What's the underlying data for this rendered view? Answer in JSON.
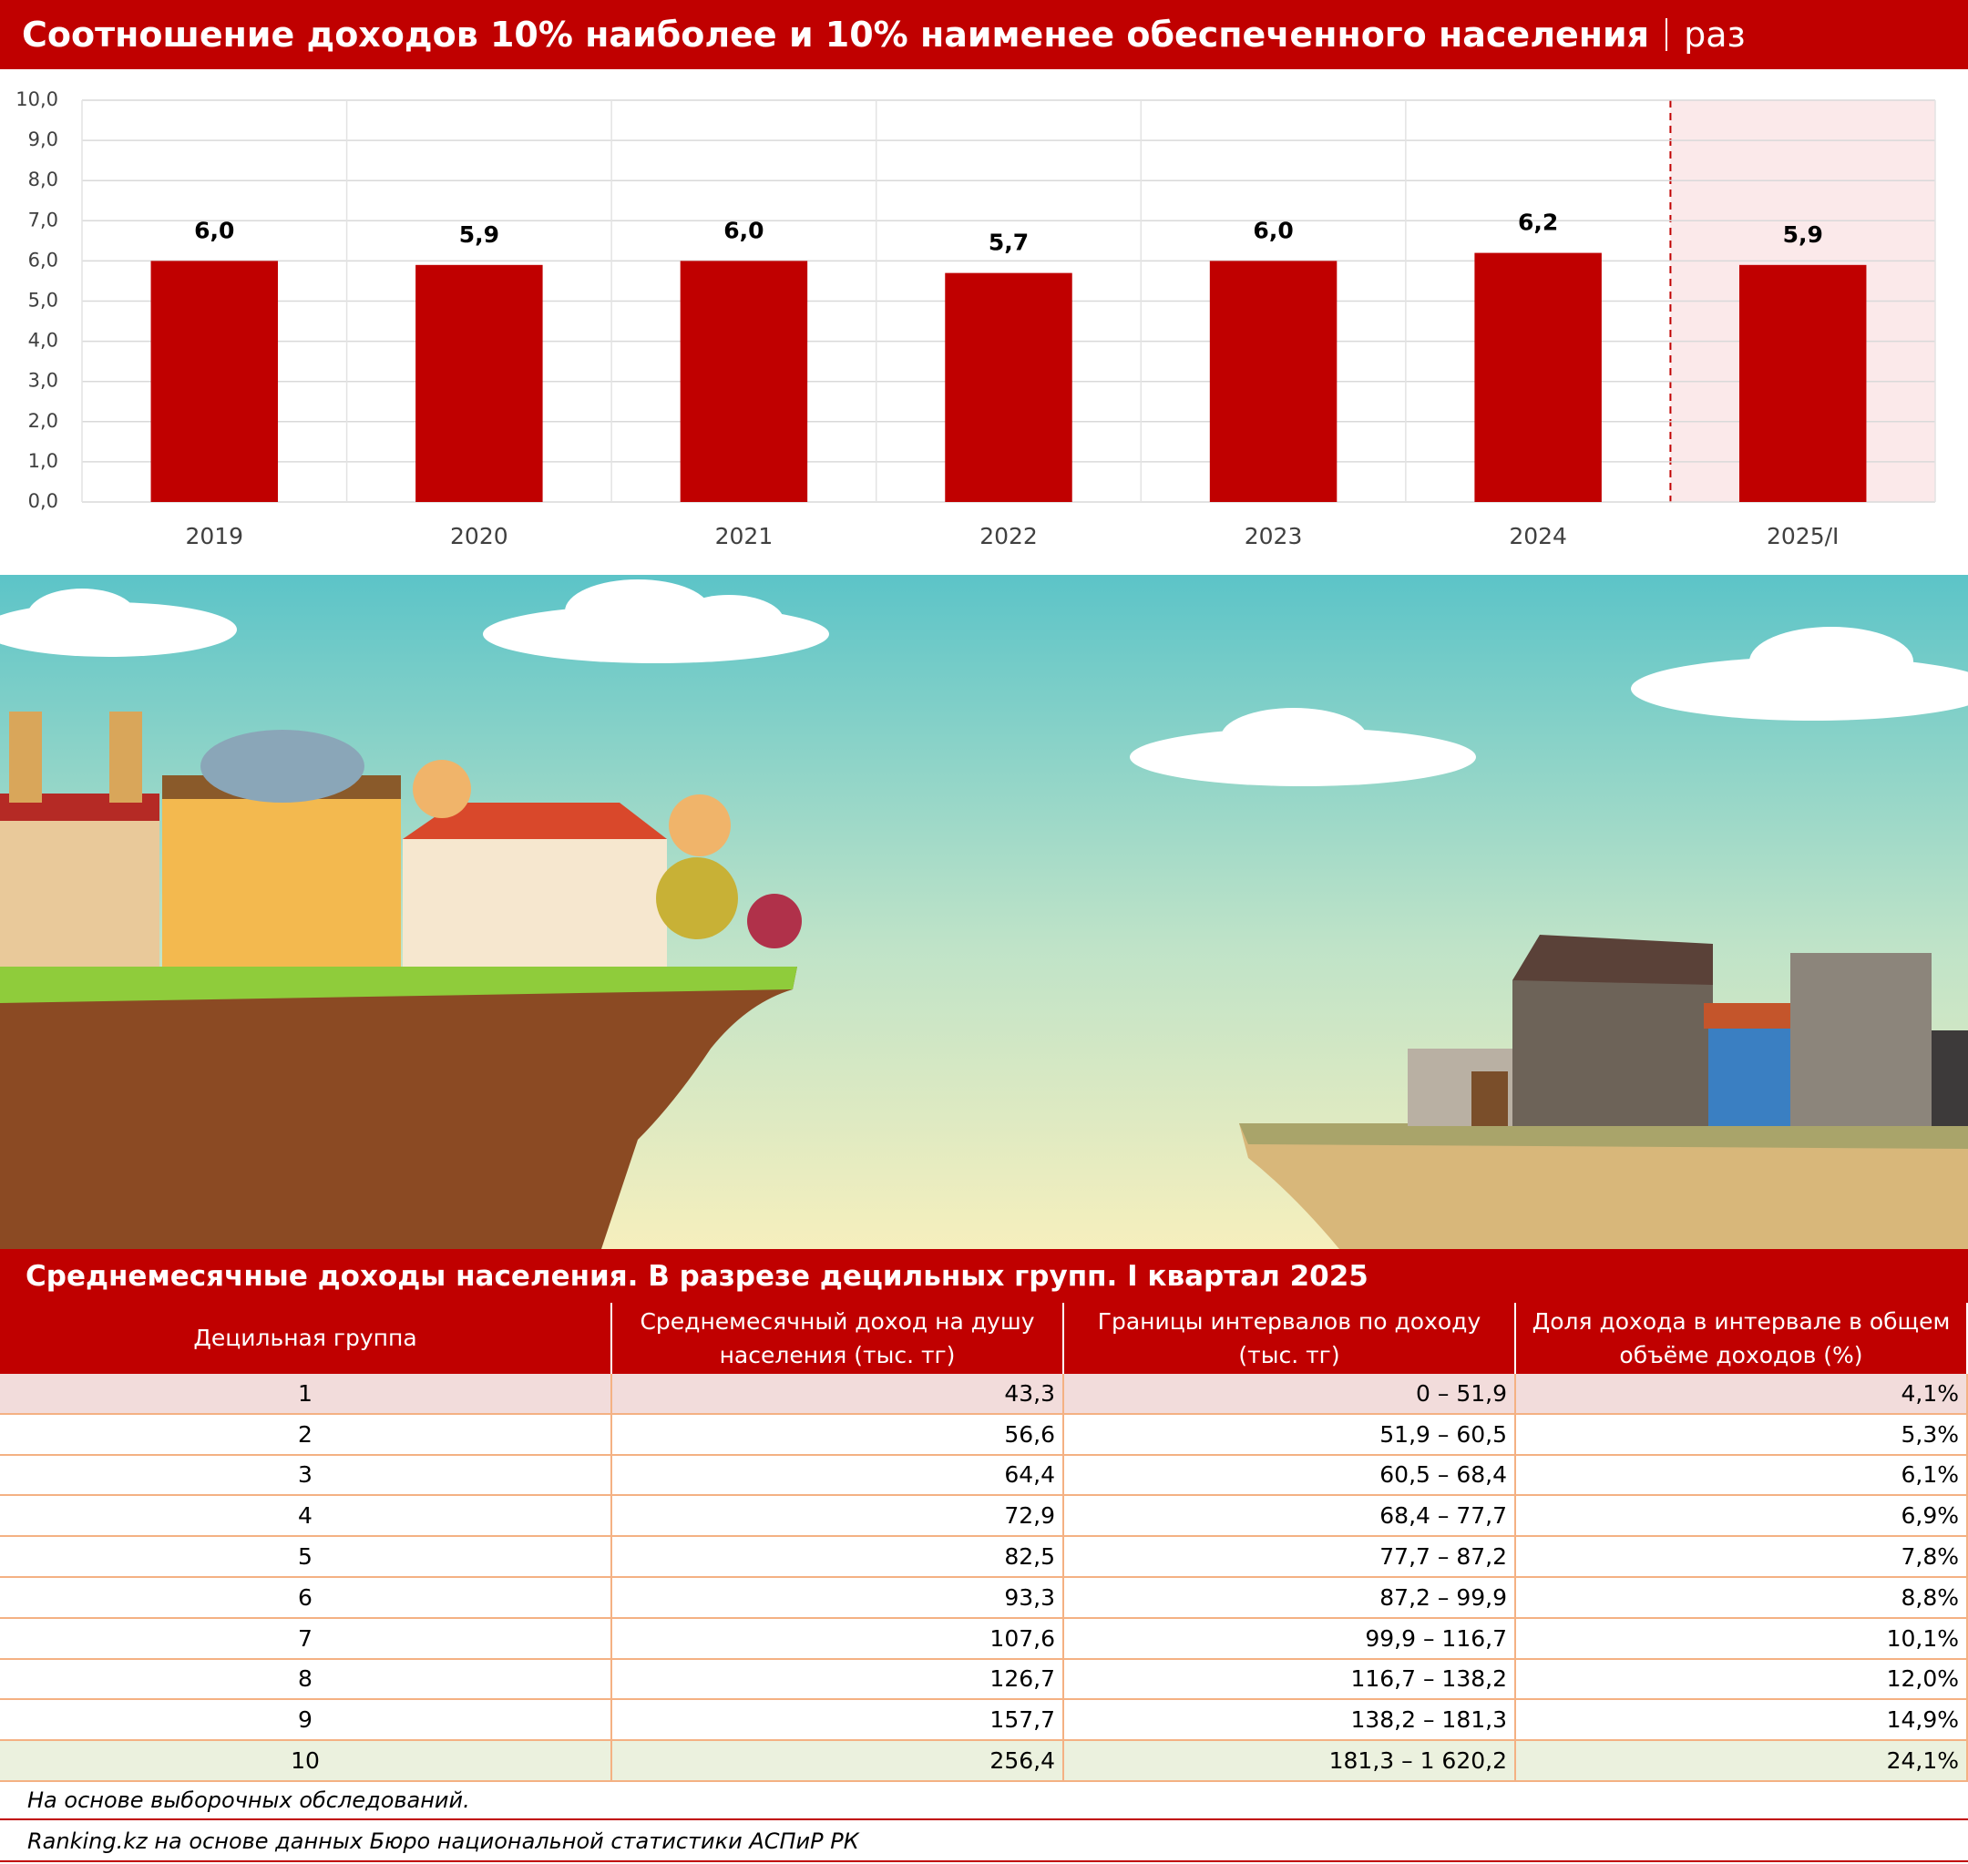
{
  "chart_data": {
    "type": "bar",
    "title": "Соотношение доходов 10% наиболее и 10% наименее обеспеченного населения",
    "unit": "раз",
    "categories": [
      "2019",
      "2020",
      "2021",
      "2022",
      "2023",
      "2024",
      "2025/I"
    ],
    "values": [
      6.0,
      5.9,
      6.0,
      5.7,
      6.0,
      6.2,
      5.9
    ],
    "value_labels": [
      "6,0",
      "5,9",
      "6,0",
      "5,7",
      "6,0",
      "6,2",
      "5,9"
    ],
    "color": "#c00000",
    "ylim": [
      0,
      10
    ],
    "yticks": [
      {
        "value": 0,
        "label": "0,0"
      },
      {
        "value": 1,
        "label": "1,0"
      },
      {
        "value": 2,
        "label": "2,0"
      },
      {
        "value": 3,
        "label": "3,0"
      },
      {
        "value": 4,
        "label": "4,0"
      },
      {
        "value": 5,
        "label": "5,0"
      },
      {
        "value": 6,
        "label": "6,0"
      },
      {
        "value": 7,
        "label": "7,0"
      },
      {
        "value": 8,
        "label": "8,0"
      },
      {
        "value": 9,
        "label": "9,0"
      },
      {
        "value": 10,
        "label": "10,0"
      }
    ],
    "grid": true
  },
  "table": {
    "title": "Среднемесячные доходы населения. В разрезе децильных групп. I квартал 2025",
    "columns": [
      "Децильная группа",
      "Среднемесячный доход на душу населения (тыс. тг)",
      "Границы интервалов по доходу (тыс. тг)",
      "Доля дохода в интервале в общем объёме доходов (%)"
    ],
    "rows": [
      [
        "1",
        "43,3",
        "0 – 51,9",
        "4,1%"
      ],
      [
        "2",
        "56,6",
        "51,9 – 60,5",
        "5,3%"
      ],
      [
        "3",
        "64,4",
        "60,5 – 68,4",
        "6,1%"
      ],
      [
        "4",
        "72,9",
        "68,4 – 77,7",
        "6,9%"
      ],
      [
        "5",
        "82,5",
        "77,7 – 87,2",
        "7,8%"
      ],
      [
        "6",
        "93,3",
        "87,2 – 99,9",
        "8,8%"
      ],
      [
        "7",
        "107,6",
        "99,9 – 116,7",
        "10,1%"
      ],
      [
        "8",
        "126,7",
        "116,7 – 138,2",
        "12,0%"
      ],
      [
        "9",
        "157,7",
        "138,2 – 181,3",
        "14,9%"
      ],
      [
        "10",
        "256,4",
        "181,3 – 1 620,2",
        "24,1%"
      ]
    ],
    "note": "На основе выборочных обследований.",
    "source": "Ranking.kz на основе данных Бюро национальной статистики АСПиР РК"
  }
}
